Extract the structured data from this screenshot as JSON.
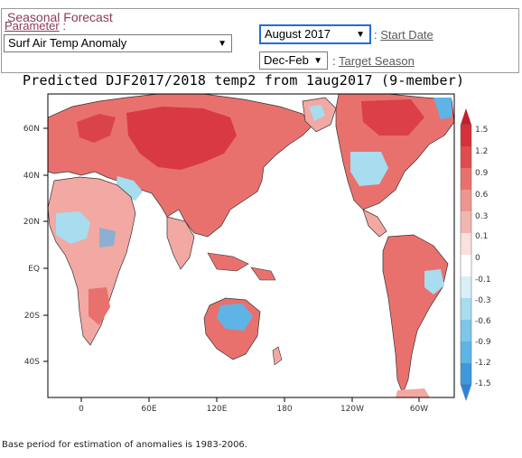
{
  "panel": {
    "legend": "Seasonal Forecast",
    "parameter_label": "Parameter",
    "parameter_value": "Surf Air Temp Anomaly",
    "start_date_value": "August 2017",
    "start_date_label": "Start Date",
    "target_season_value": "Dec-Feb",
    "target_season_label": "Target Season"
  },
  "chart": {
    "title": "Predicted DJF2017/2018 temp2 from 1aug2017 (9-member)",
    "lat_ticks": [
      "60N",
      "40N",
      "20N",
      "EQ",
      "20S",
      "40S"
    ],
    "lon_ticks": [
      "0",
      "60E",
      "120E",
      "180",
      "120W",
      "60W"
    ],
    "colorbar_labels": [
      "1.5",
      "1.2",
      "0.9",
      "0.6",
      "0.3",
      "0.1",
      "0",
      "-0.1",
      "-0.3",
      "-0.6",
      "-0.9",
      "-1.2",
      "-1.5"
    ],
    "colors": {
      "warm_strong": "#d6303a",
      "warm_mid": "#e8716e",
      "warm_light": "#f2a8a3",
      "neutral": "#ffffff",
      "cool_light": "#a8dcef",
      "cool_mid": "#5fb4e6",
      "cool_strong": "#2f82d6"
    }
  },
  "footer": "Base period for estimation of anomalies is 1983-2006."
}
